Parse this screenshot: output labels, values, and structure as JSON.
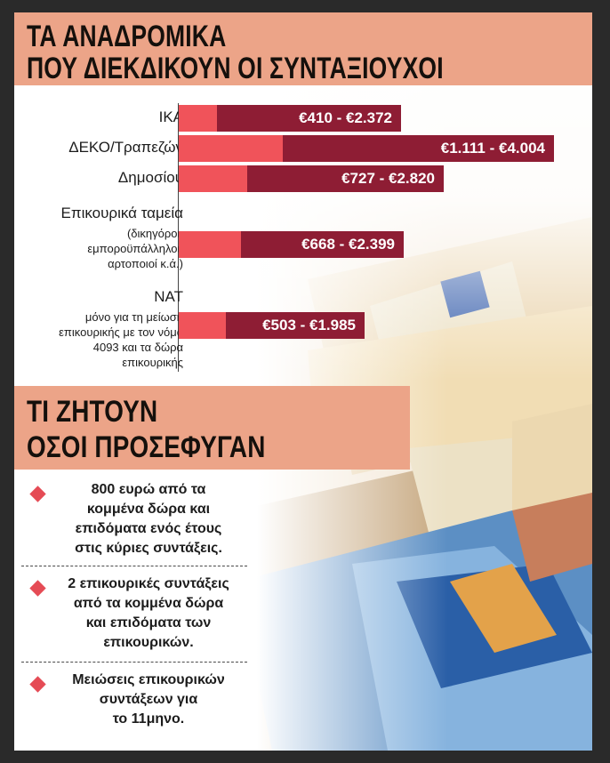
{
  "header": {
    "title_line1": "ΤΑ ΑΝΑΔΡΟΜΙΚΑ",
    "title_line2": "ΠΟΥ ΔΙΕΚΔΙΚΟΥΝ ΟΙ ΣΥΝΤΑΞΙΟΥΧΟΙ"
  },
  "chart_data": {
    "type": "bar",
    "orientation": "horizontal",
    "title": "ΤΑ ΑΝΑΔΡΟΜΙΚΑ ΠΟΥ ΔΙΕΚΔΙΚΟΥΝ ΟΙ ΣΥΝΤΑΞΙΟΥΧΟΙ",
    "categories": [
      {
        "name": "ΙΚΑ",
        "sub": []
      },
      {
        "name": "ΔΕΚΟ/Τραπεζών",
        "sub": []
      },
      {
        "name": "Δημοσίου",
        "sub": []
      },
      {
        "name": "Επικουρικά ταμεία",
        "sub": [
          "(δικηγόροι,",
          "εμποροϋπάλληλοι,",
          "αρτοποιοί κ.ά.)"
        ]
      },
      {
        "name": "ΝΑΤ",
        "sub": [
          "μόνο για τη μείωση",
          "επικουρικής με τον νόμο",
          "4093 και τα δώρα",
          "επικουρικής"
        ]
      }
    ],
    "series": [
      {
        "values": [
          410,
          1111,
          727,
          668,
          503
        ]
      },
      {
        "values": [
          2372,
          4004,
          2820,
          2399,
          1985
        ]
      }
    ],
    "labels": [
      "€410 - €2.372",
      "€1.111 - €4.004",
      "€727 - €2.820",
      "€668 - €2.399",
      "€503 - €1.985"
    ],
    "colors": {
      "min": "#f0535a",
      "max": "#8e1d34"
    }
  },
  "section2": {
    "title_line1": "ΤΙ ΖΗΤΟΥΝ",
    "title_line2": "ΟΣΟΙ ΠΡΟΣΕΦΥΓΑΝ",
    "items": [
      [
        "800 ευρώ από τα",
        "κομμένα δώρα και",
        "επιδόματα ενός έτους",
        "στις κύριες συντάξεις."
      ],
      [
        "2 επικουρικές συντάξεις",
        "από τα κομμένα δώρα",
        "και επιδόματα των",
        "επικουρικών."
      ],
      [
        "Μειώσεις επικουρικών",
        "συντάξεων για",
        "το 11μηνο."
      ]
    ]
  },
  "colors": {
    "band": "#eca488",
    "bullet": "#e54b55",
    "frame": "#2a2a2a"
  }
}
